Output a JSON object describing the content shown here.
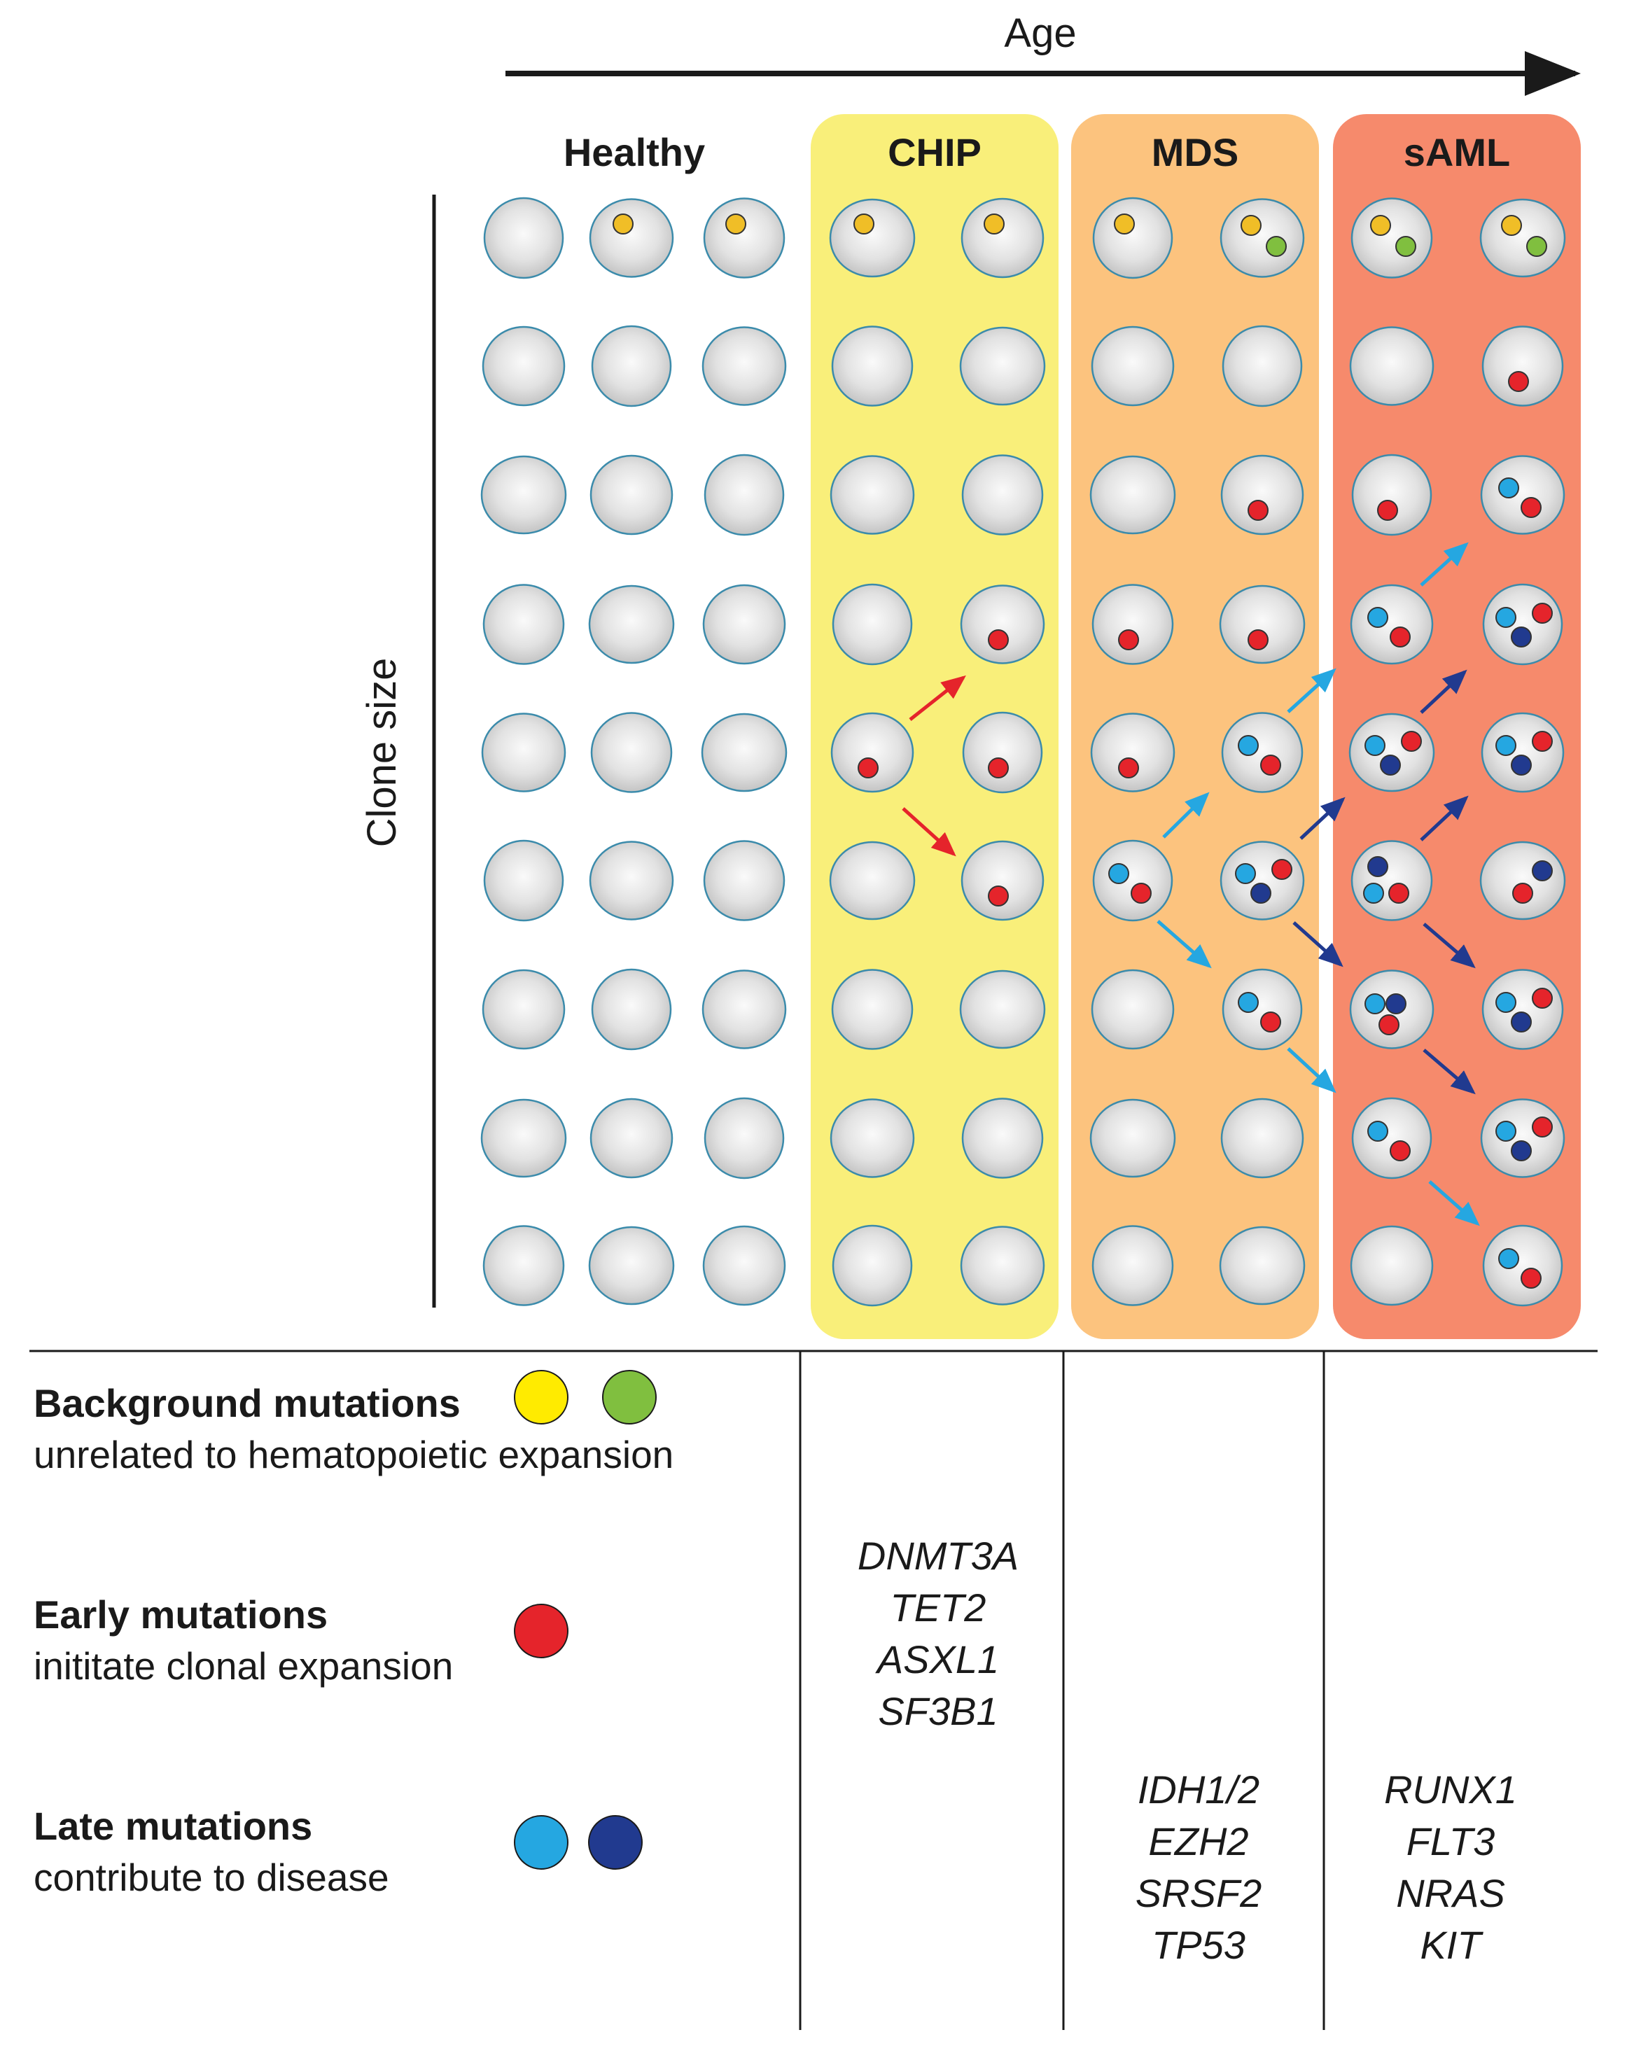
{
  "axis": {
    "age_label": "Age",
    "clone_size_label": "Clone size"
  },
  "stages": [
    {
      "name": "Healthy",
      "background": "none",
      "cols": 3
    },
    {
      "name": "CHIP",
      "background": "#f9ef7a",
      "cols": 2
    },
    {
      "name": "MDS",
      "background": "#fcc37e",
      "cols": 2
    },
    {
      "name": "sAML",
      "background": "#f68a6c",
      "cols": 2
    }
  ],
  "colors": {
    "background_yellow": "#f0be27",
    "background_green": "#80bf3f",
    "early_red": "#e5242b",
    "late_lightblue": "#25a7e1",
    "late_darkblue": "#213a8f",
    "cell_fill": "#dfdfdf",
    "cell_stroke": "#3b8bab"
  },
  "cells": {
    "note": "per row: list of cells across columns (3 healthy, 2 CHIP, 2 MDS, 2 sAML); letters = mutation dots (y yellow, g green, r red, b light blue, d dark blue)",
    "rows": [
      [
        "",
        "y",
        "y",
        "y",
        "y",
        "y",
        "yg",
        "yg",
        "yg"
      ],
      [
        "",
        "",
        "",
        "",
        "",
        "",
        "",
        "",
        "r"
      ],
      [
        "",
        "",
        "",
        "",
        "",
        "",
        "r",
        "r",
        "br"
      ],
      [
        "",
        "",
        "",
        "",
        "r",
        "r",
        "r",
        "br",
        "brd"
      ],
      [
        "",
        "",
        "",
        "r",
        "r",
        "r",
        "br",
        "brd",
        "brd"
      ],
      [
        "",
        "",
        "",
        "",
        "r",
        "br",
        "brd",
        "dbr",
        "rd"
      ],
      [
        "",
        "",
        "",
        "",
        "",
        "",
        "br",
        "bdr",
        "brd"
      ],
      [
        "",
        "",
        "",
        "",
        "",
        "",
        "",
        "br",
        "brd"
      ],
      [
        "",
        "",
        "",
        "",
        "",
        "",
        "",
        "",
        "br"
      ]
    ]
  },
  "legend": [
    {
      "title": "Background mutations",
      "subtitle": "unrelated to hematopoietic expansion",
      "swatches": [
        "#ffeb00",
        "#80bf3f"
      ]
    },
    {
      "title": "Early mutations",
      "subtitle": "inititate clonal expansion",
      "swatches": [
        "#e5242b"
      ]
    },
    {
      "title": "Late mutations",
      "subtitle": "contribute to disease",
      "swatches": [
        "#25a7e1",
        "#213a8f"
      ]
    }
  ],
  "genes": {
    "chip": [
      "DNMT3A",
      "TET2",
      "ASXL1",
      "SF3B1"
    ],
    "mds": [
      "IDH1/2",
      "EZH2",
      "SRSF2",
      "TP53"
    ],
    "saml": [
      "RUNX1",
      "FLT3",
      "NRAS",
      "KIT"
    ]
  }
}
